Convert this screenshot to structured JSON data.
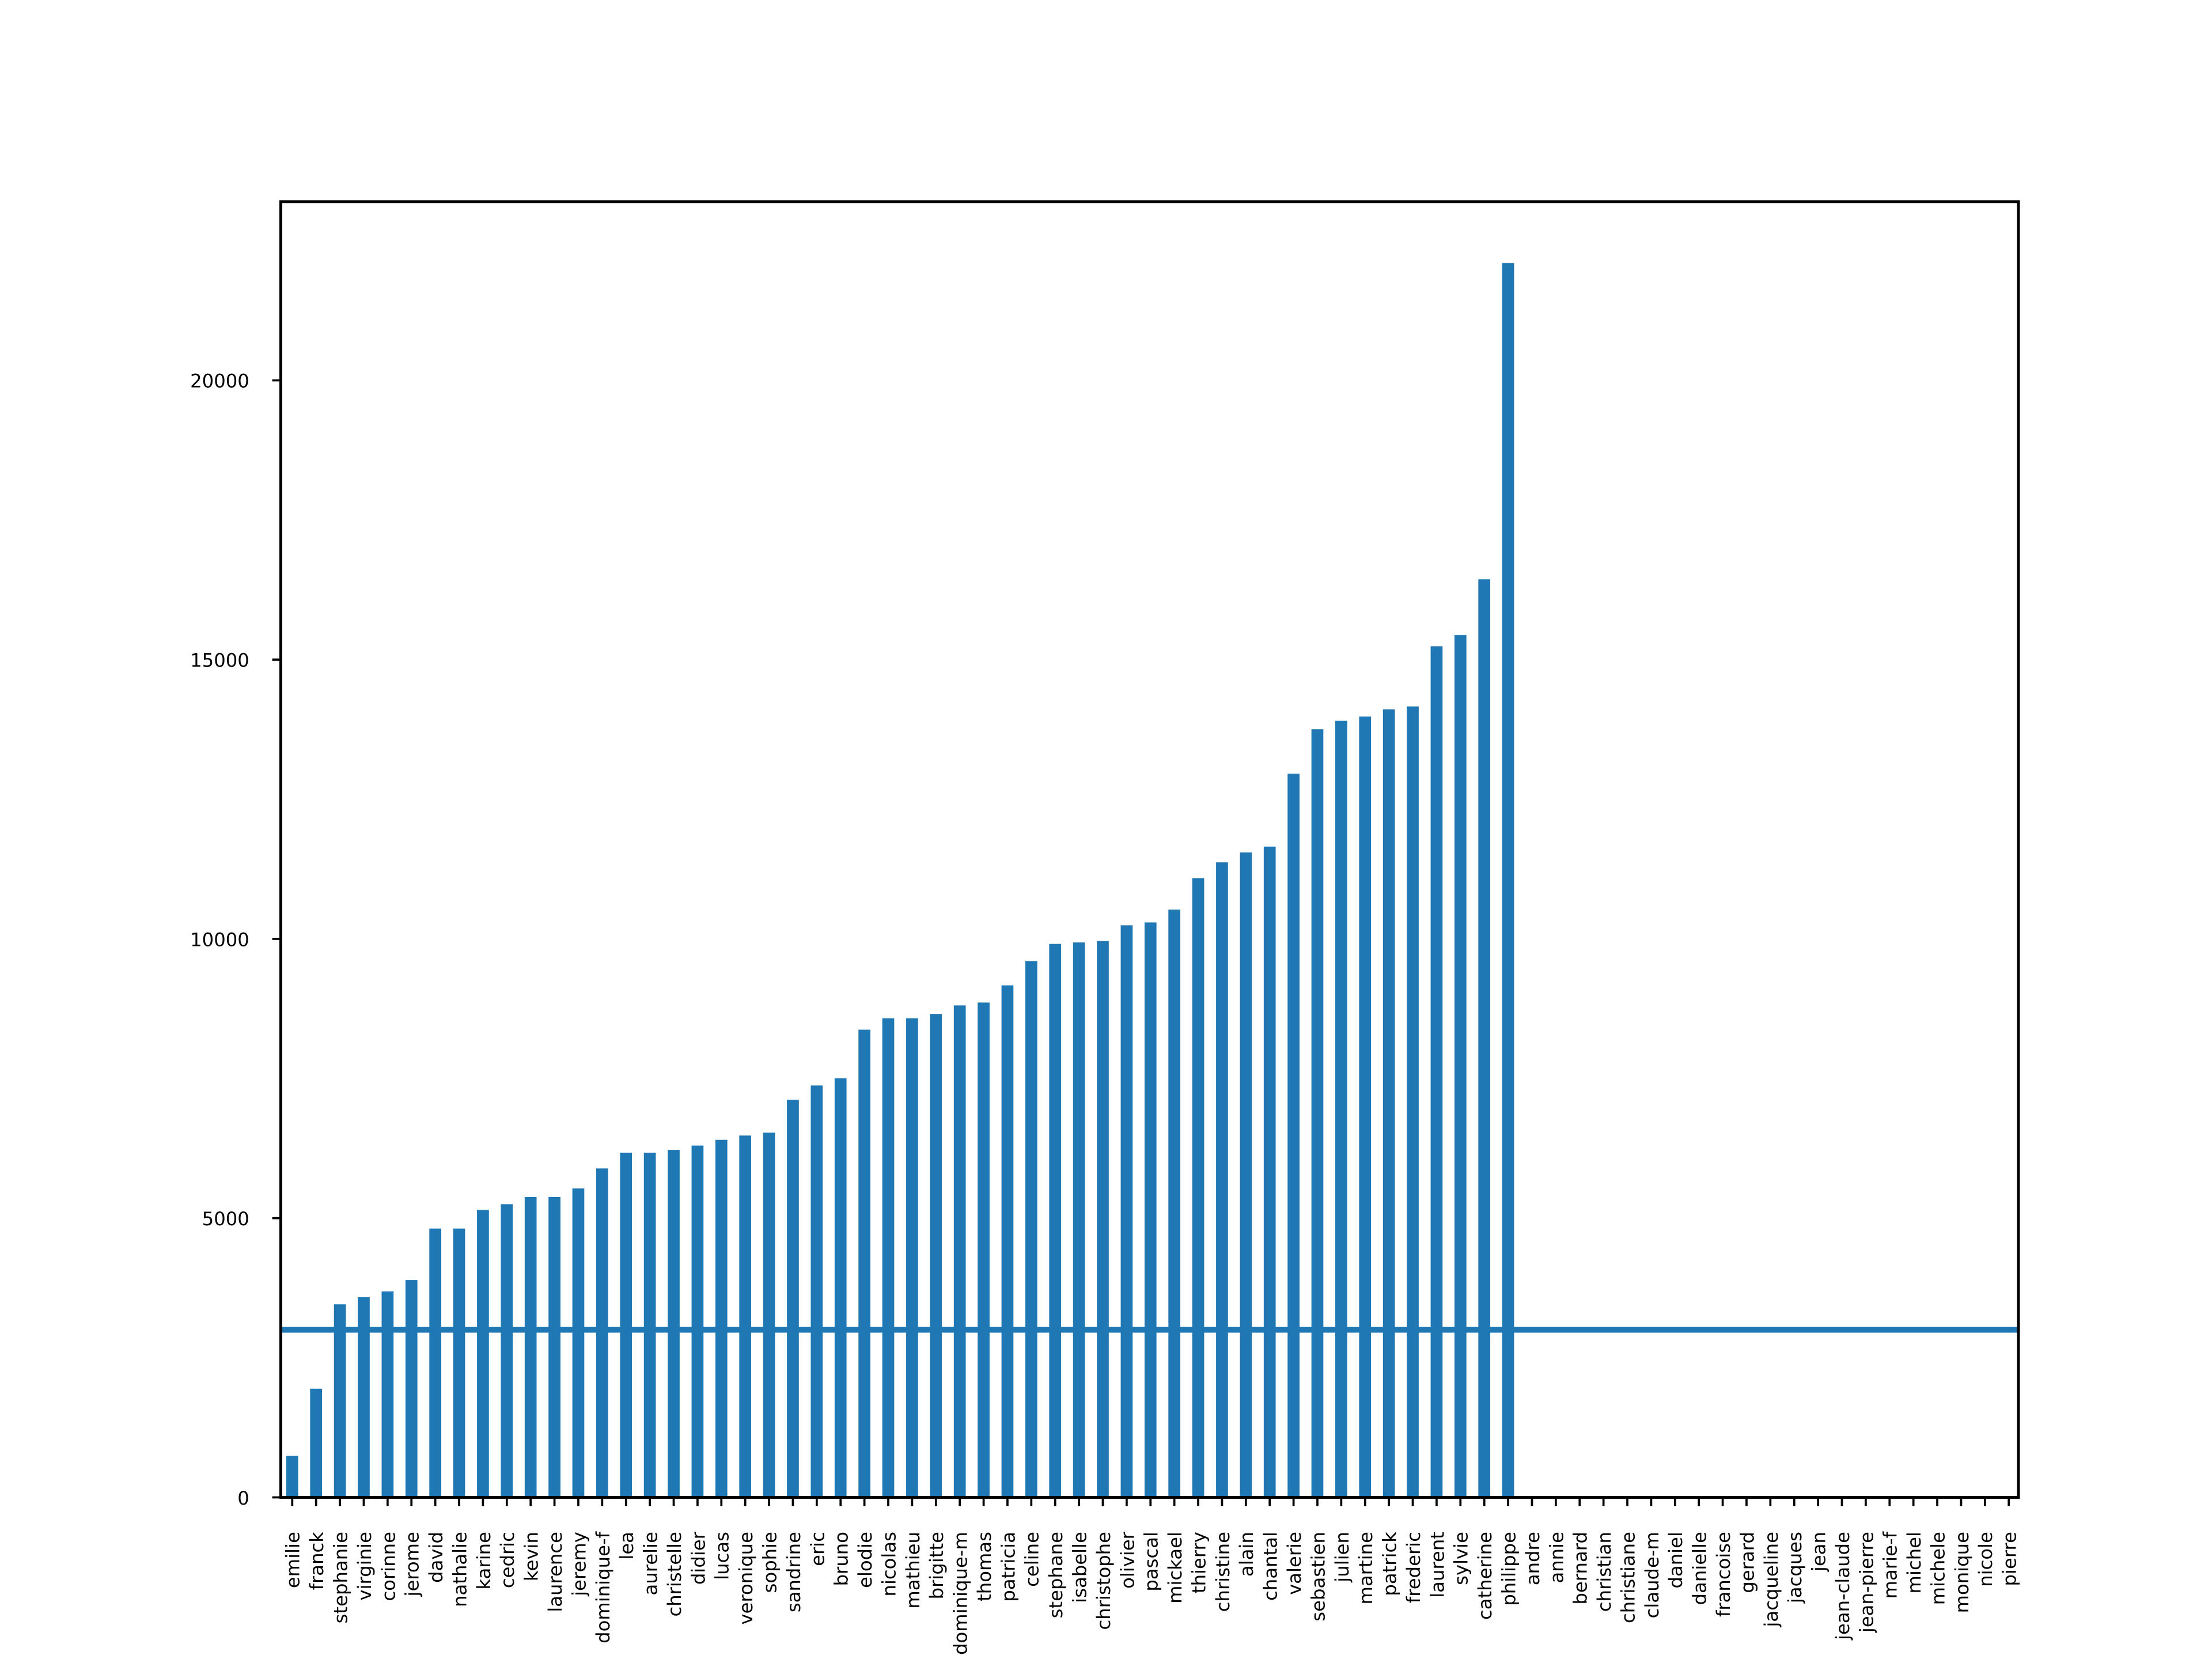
{
  "chart_data": {
    "type": "bar",
    "categories": [
      "emilie",
      "franck",
      "stephanie",
      "virginie",
      "corinne",
      "jerome",
      "david",
      "nathalie",
      "karine",
      "cedric",
      "kevin",
      "laurence",
      "jeremy",
      "dominique-f",
      "lea",
      "aurelie",
      "christelle",
      "didier",
      "lucas",
      "veronique",
      "sophie",
      "sandrine",
      "eric",
      "bruno",
      "elodie",
      "nicolas",
      "mathieu",
      "brigitte",
      "dominique-m",
      "thomas",
      "patricia",
      "celine",
      "stephane",
      "isabelle",
      "christophe",
      "olivier",
      "pascal",
      "mickael",
      "thierry",
      "christine",
      "alain",
      "chantal",
      "valerie",
      "sebastien",
      "julien",
      "martine",
      "patrick",
      "frederic",
      "laurent",
      "sylvie",
      "catherine",
      "philippe",
      "andre",
      "annie",
      "bernard",
      "christian",
      "christiane",
      "claude-m",
      "daniel",
      "danielle",
      "francoise",
      "gerard",
      "jacqueline",
      "jacques",
      "jean",
      "jean-claude",
      "jean-pierre",
      "marie-f",
      "michel",
      "michele",
      "monique",
      "nicole",
      "pierre"
    ],
    "values": [
      743,
      1946,
      3457,
      3585,
      3688,
      3892,
      4814,
      4814,
      5147,
      5250,
      5378,
      5378,
      5531,
      5890,
      6172,
      6172,
      6223,
      6300,
      6402,
      6479,
      6530,
      7119,
      7375,
      7503,
      8374,
      8579,
      8579,
      8656,
      8809,
      8860,
      9168,
      9603,
      9910,
      9936,
      9962,
      10243,
      10294,
      10525,
      11088,
      11370,
      11549,
      11652,
      12958,
      13752,
      13905,
      13982,
      14110,
      14161,
      15237,
      15442,
      16440,
      22100,
      0,
      0,
      0,
      0,
      0,
      0,
      0,
      0,
      0,
      0,
      0,
      0,
      0,
      0,
      0,
      0,
      0,
      0,
      0,
      0,
      0
    ],
    "color": "#1f77b4",
    "hline": 3000,
    "ylim": [
      0,
      23200
    ],
    "yticks": [
      0,
      5000,
      10000,
      15000,
      20000
    ]
  }
}
